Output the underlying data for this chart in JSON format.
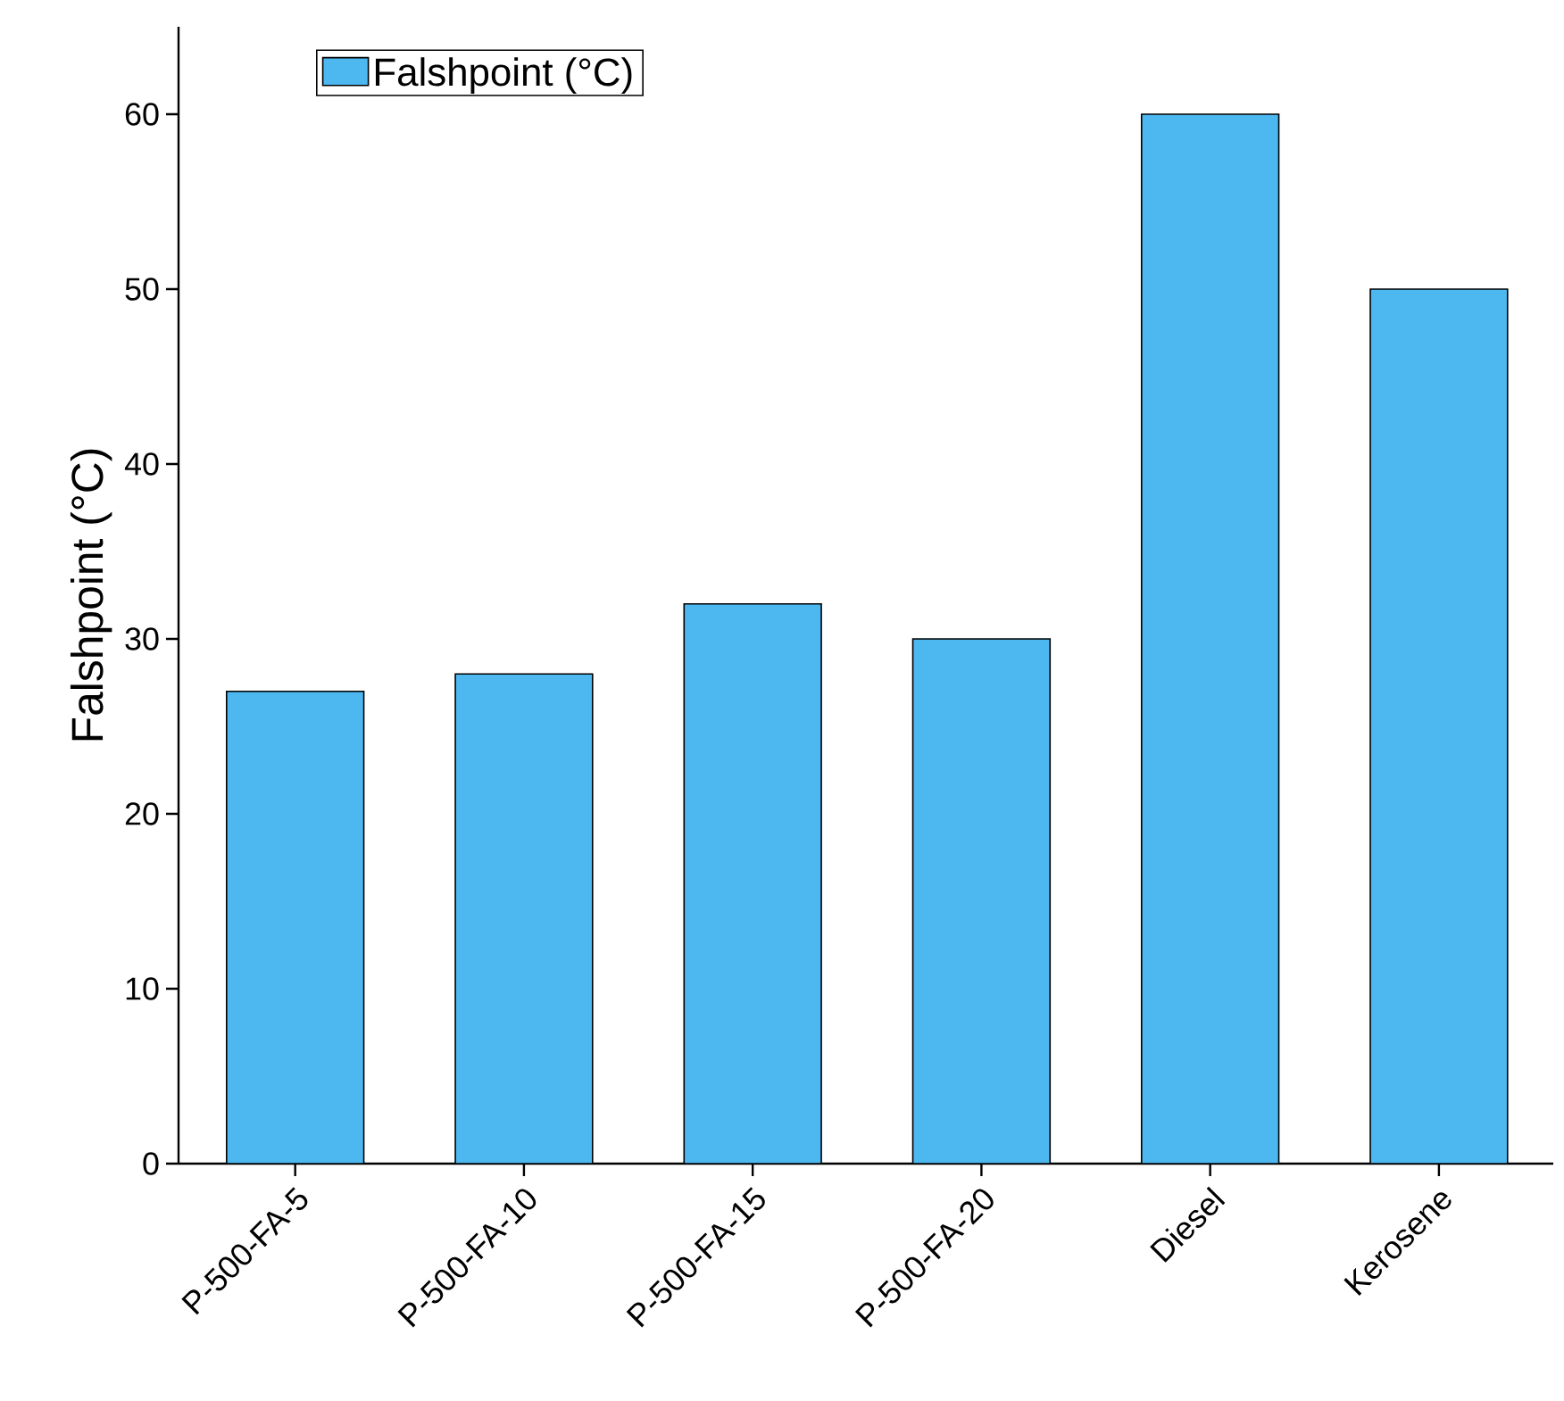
{
  "chart_data": {
    "type": "bar",
    "ylabel": "Falshpoint (°C)",
    "categories": [
      "P-500-FA-5",
      "P-500-FA-10",
      "P-500-FA-15",
      "P-500-FA-20",
      "Diesel",
      "Kerosene"
    ],
    "series": [
      {
        "name": "Falshpoint (°C)",
        "color": "#4db8f0",
        "values": [
          27,
          28,
          32,
          30,
          60,
          50
        ]
      }
    ],
    "ylim": [
      0,
      65
    ],
    "yticks": [
      0,
      10,
      20,
      30,
      40,
      50,
      60
    ],
    "legend": "top left"
  }
}
